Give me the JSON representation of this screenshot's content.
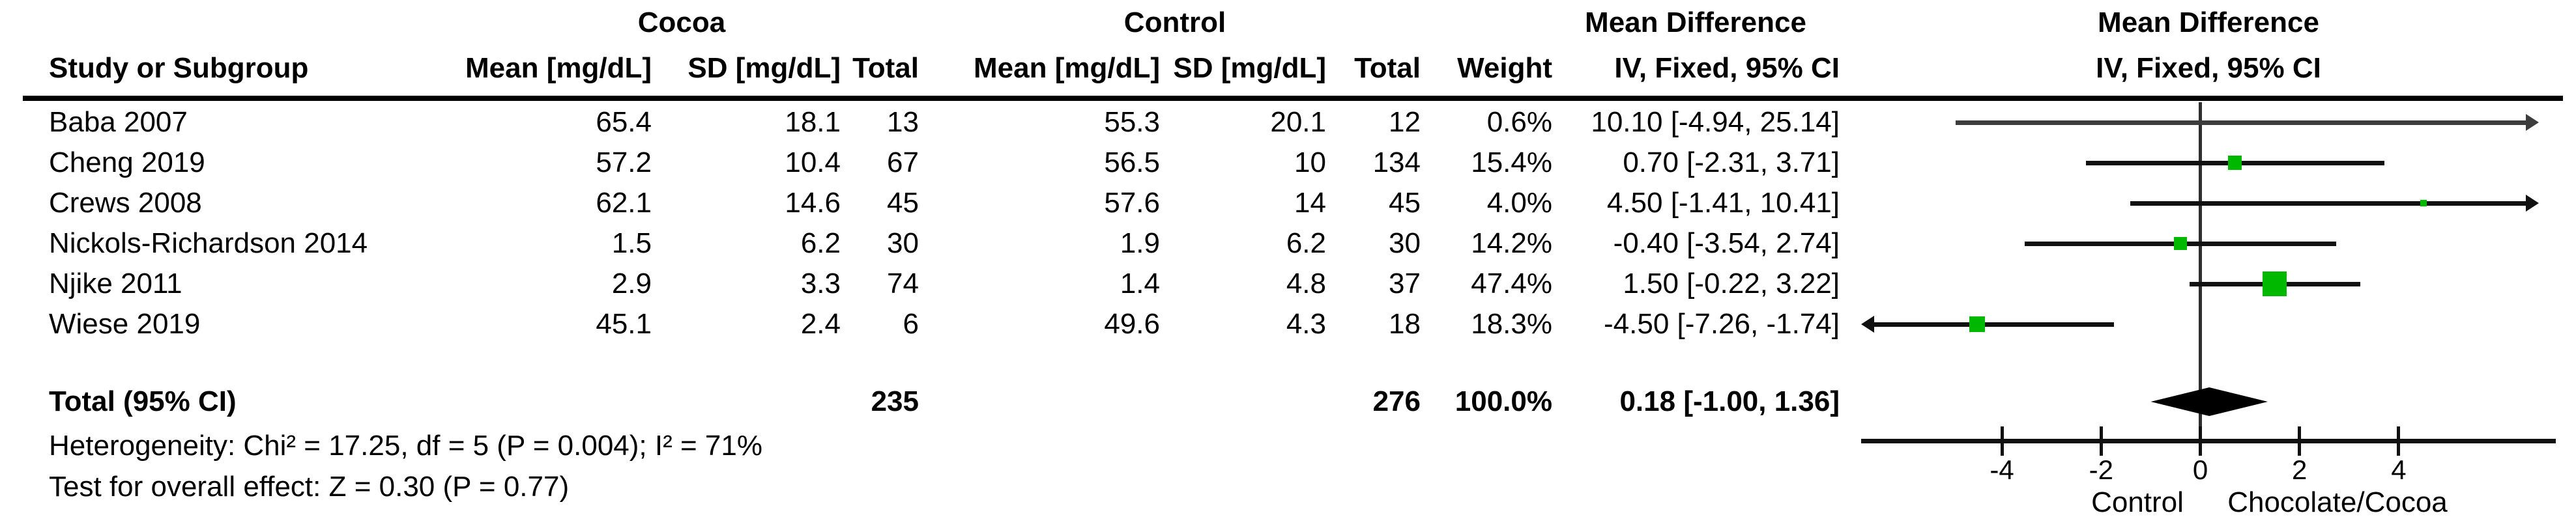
{
  "header": {
    "group_cocoa": "Cocoa",
    "group_control": "Control",
    "group_md_text": "Mean Difference",
    "group_md_plot": "Mean Difference",
    "study": "Study or Subgroup",
    "mean": "Mean [mg/dL]",
    "sd": "SD [mg/dL]",
    "total": "Total",
    "weight": "Weight",
    "ci_method_text": "IV, Fixed, 95% CI",
    "ci_method_plot": "IV, Fixed, 95% CI"
  },
  "footnotes": {
    "heterogeneity": "Heterogeneity: Chi² = 17.25, df = 5 (P = 0.004); I² = 71%",
    "overall_effect": "Test for overall effect: Z = 0.30 (P = 0.77)"
  },
  "colors": {
    "square": "#00b800",
    "diamond": "#000000",
    "line": "#111111",
    "dim_line": "#3d3d3d"
  },
  "chart_data": {
    "type": "forest",
    "effect_measure": "Mean Difference",
    "method": "IV, Fixed, 95% CI",
    "unit": "mg/dL",
    "studies": [
      {
        "name": "Baba 2007",
        "cells": [
          "65.4",
          "18.1",
          "13",
          "55.3",
          "20.1",
          "12",
          "0.6%",
          "10.10 [-4.94, 25.14]"
        ],
        "est": 10.1,
        "lo": -4.94,
        "hi": 25.14,
        "weight_pct": 0.6
      },
      {
        "name": "Cheng 2019",
        "cells": [
          "57.2",
          "10.4",
          "67",
          "56.5",
          "10",
          "134",
          "15.4%",
          "0.70 [-2.31, 3.71]"
        ],
        "est": 0.7,
        "lo": -2.31,
        "hi": 3.71,
        "weight_pct": 15.4
      },
      {
        "name": "Crews 2008",
        "cells": [
          "62.1",
          "14.6",
          "45",
          "57.6",
          "14",
          "45",
          "4.0%",
          "4.50 [-1.41, 10.41]"
        ],
        "est": 4.5,
        "lo": -1.41,
        "hi": 10.41,
        "weight_pct": 4.0
      },
      {
        "name": "Nickols-Richardson 2014",
        "cells": [
          "1.5",
          "6.2",
          "30",
          "1.9",
          "6.2",
          "30",
          "14.2%",
          "-0.40 [-3.54, 2.74]"
        ],
        "est": -0.4,
        "lo": -3.54,
        "hi": 2.74,
        "weight_pct": 14.2
      },
      {
        "name": "Njike 2011",
        "cells": [
          "2.9",
          "3.3",
          "74",
          "1.4",
          "4.8",
          "37",
          "47.4%",
          "1.50 [-0.22, 3.22]"
        ],
        "est": 1.5,
        "lo": -0.22,
        "hi": 3.22,
        "weight_pct": 47.4
      },
      {
        "name": "Wiese 2019",
        "cells": [
          "45.1",
          "2.4",
          "6",
          "49.6",
          "4.3",
          "18",
          "18.3%",
          "-4.50 [-7.26, -1.74]"
        ],
        "est": -4.5,
        "lo": -7.26,
        "hi": -1.74,
        "weight_pct": 18.3
      }
    ],
    "total": {
      "label": "Total (95% CI)",
      "cells": [
        "",
        "",
        "235",
        "",
        "",
        "276",
        "100.0%",
        "0.18 [-1.00, 1.36]"
      ],
      "est": 0.18,
      "lo": -1.0,
      "hi": 1.36,
      "weight_pct": 100.0
    },
    "heterogeneity": "Heterogeneity: Chi² = 17.25, df = 5 (P = 0.004); I² = 71%",
    "overall_effect": "Test for overall effect: Z = 0.30 (P = 0.77)",
    "axis": {
      "ticks": [
        -4,
        -2,
        0,
        2,
        4
      ],
      "xmin": -6.8,
      "xmax": 6.8,
      "left_caption": "Control",
      "right_caption": "Chocolate/Cocoa"
    }
  }
}
